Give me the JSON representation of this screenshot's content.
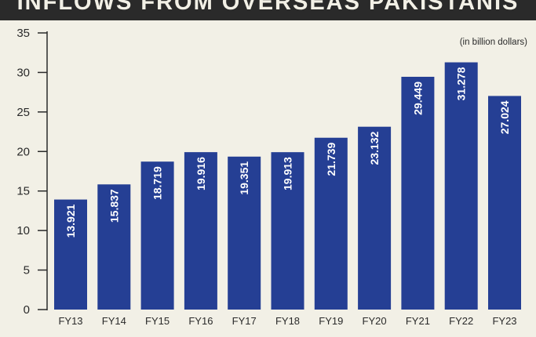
{
  "header": {
    "title": "INFLOWS FROM OVERSEAS PAKISTANIS"
  },
  "colors": {
    "bar": "#253f94",
    "axis": "#2a2a2a",
    "background": "#f2f0e6",
    "title_bar": "#2a2a2a"
  },
  "chart_data": {
    "type": "bar",
    "title": "INFLOWS FROM OVERSEAS PAKISTANIS",
    "unit_note": "(in billion dollars)",
    "categories": [
      "FY13",
      "FY14",
      "FY15",
      "FY16",
      "FY17",
      "FY18",
      "FY19",
      "FY20",
      "FY21",
      "FY22",
      "FY23"
    ],
    "values": [
      13.921,
      15.837,
      18.719,
      19.916,
      19.351,
      19.913,
      21.739,
      23.132,
      29.449,
      31.278,
      27.024
    ],
    "value_labels": [
      "13.921",
      "15.837",
      "18.719",
      "19.916",
      "19.351",
      "19.913",
      "21.739",
      "23.132",
      "29.449",
      "31.278",
      "27.024"
    ],
    "y_ticks": [
      "0",
      "5",
      "10",
      "15",
      "20",
      "25",
      "30",
      "35"
    ],
    "ylim": [
      0,
      35
    ],
    "xlabel": "",
    "ylabel": "",
    "grid": false,
    "legend": "none"
  }
}
